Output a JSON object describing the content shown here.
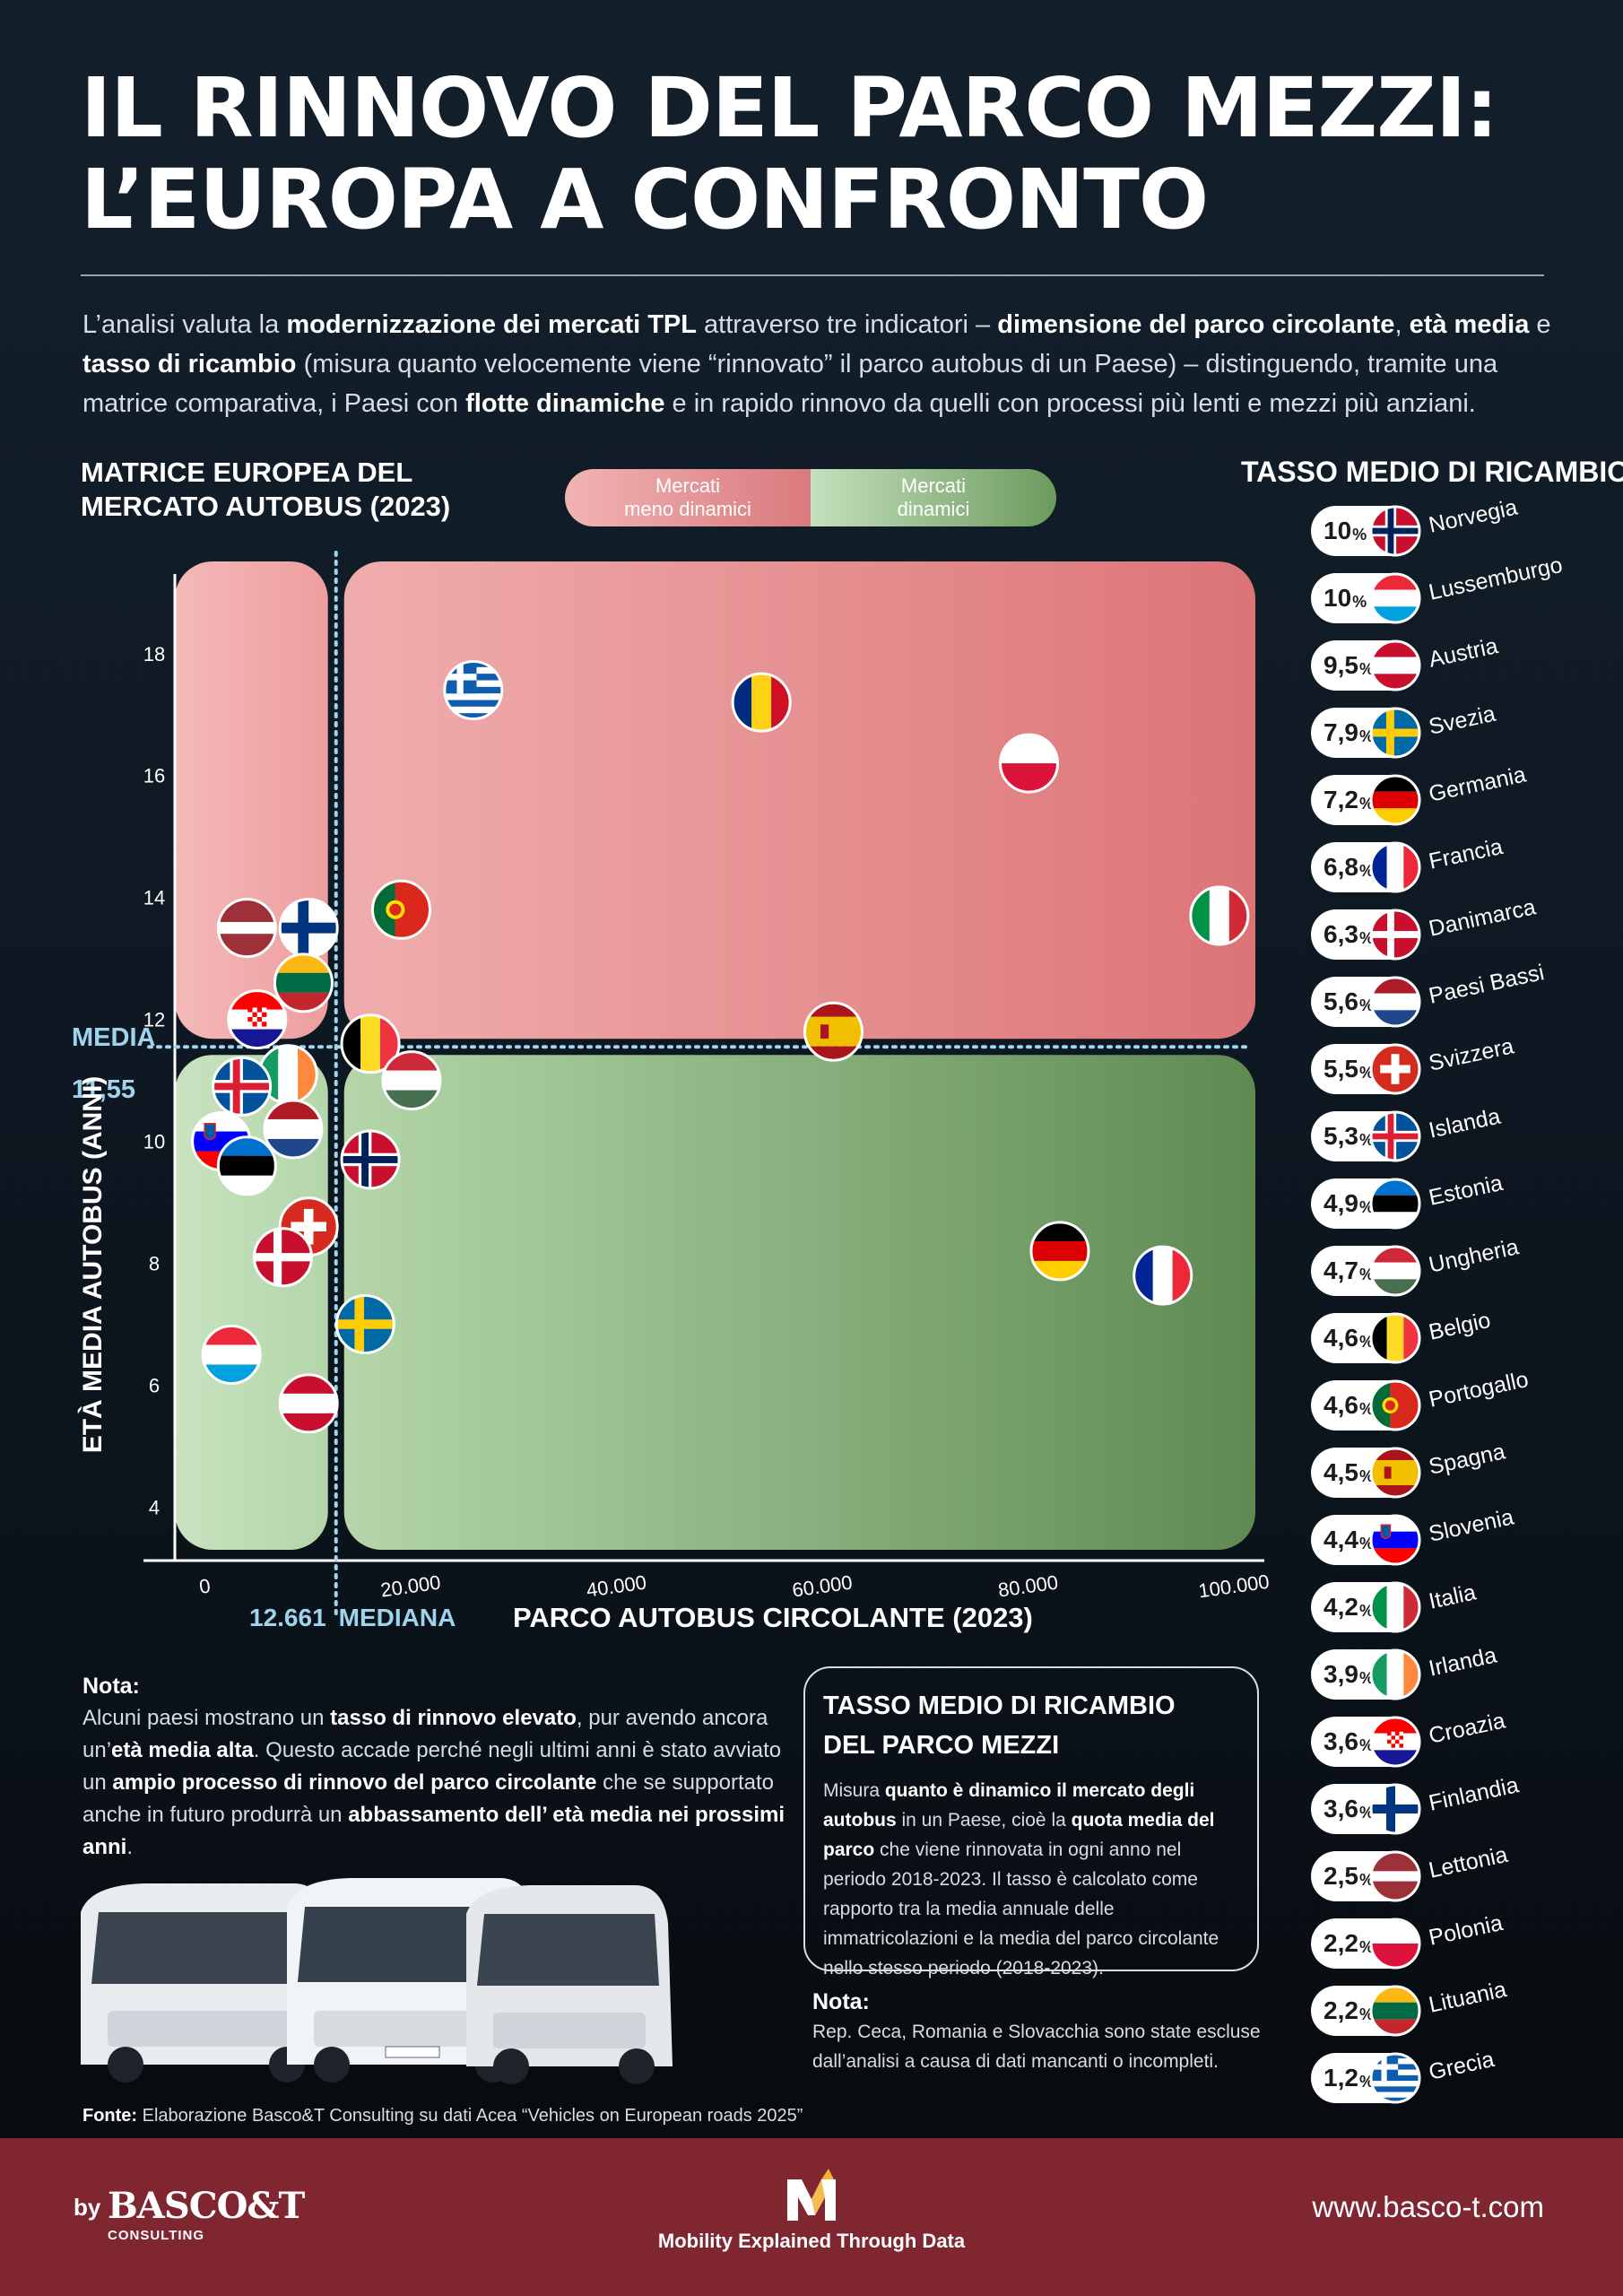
{
  "header": {
    "title_line1": "IL RINNOVO DEL PARCO MEZZI:",
    "title_line2": "L’EUROPA A CONFRONTO"
  },
  "intro": {
    "t1": "L’analisi valuta la ",
    "b1": "modernizzazione dei mercati TPL",
    "t2": " attraverso tre indicatori – ",
    "b2": "dimensione del parco circolante",
    "t3": ", ",
    "b3": "età media",
    "t4": " e ",
    "b4": "tasso di ricambio",
    "t5": " (misura quanto velocemente viene “rinnovato” il parco autobus di un Paese) – distinguendo, tramite una matrice comparativa, i Paesi con ",
    "b5": "flotte dinamiche",
    "t6": " e in rapido rinnovo da quelli con processi più lenti e mezzi più anziani."
  },
  "matrix": {
    "title_line1": "MATRICE EUROPEA DEL",
    "title_line2": "MERCATO AUTOBUS (2023)",
    "legend_less": "Mercati\nmeno dinamici",
    "legend_more": "Mercati\ndinamici",
    "media_label": "MEDIA",
    "media_value": "11,55",
    "median_value": "12.661",
    "median_label": "MEDIANA"
  },
  "chart_data": {
    "type": "scatter",
    "xlabel": "PARCO AUTOBUS CIRCOLANTE (2023)",
    "ylabel": "ETÀ MEDIA AUTOBUS (ANNI)",
    "xlim": [
      -3000,
      102000
    ],
    "ylim": [
      3.3,
      19.6
    ],
    "x_ticks": [
      0,
      20000,
      40000,
      60000,
      80000,
      100000
    ],
    "x_tick_labels": [
      "0",
      "20.000",
      "40.000",
      "60.000",
      "80.000",
      "100.000"
    ],
    "y_ticks": [
      4,
      6,
      8,
      10,
      12,
      14,
      16,
      18
    ],
    "y_tick_labels": [
      "4",
      "6",
      "8",
      "10",
      "12",
      "14",
      "16",
      "18"
    ],
    "mean_age": 11.55,
    "median_fleet": 12661,
    "quadrant_colors": {
      "older": "#e48a8c",
      "younger": "#8dba82"
    },
    "points": [
      {
        "country": "Grecia",
        "flag": "greece",
        "x": 26000,
        "y": 17.4
      },
      {
        "country": "Romania",
        "flag": "romania",
        "x": 54000,
        "y": 17.2
      },
      {
        "country": "Polonia",
        "flag": "poland",
        "x": 80000,
        "y": 16.2
      },
      {
        "country": "Italia",
        "flag": "italy",
        "x": 98500,
        "y": 13.7
      },
      {
        "country": "Portogallo",
        "flag": "portugal",
        "x": 19000,
        "y": 13.8
      },
      {
        "country": "Lettonia",
        "flag": "latvia",
        "x": 4000,
        "y": 13.5
      },
      {
        "country": "Finlandia",
        "flag": "finland",
        "x": 10000,
        "y": 13.5
      },
      {
        "country": "Lituania",
        "flag": "lithuania",
        "x": 9500,
        "y": 12.6
      },
      {
        "country": "Croazia",
        "flag": "croatia",
        "x": 5000,
        "y": 12.0
      },
      {
        "country": "Belgio",
        "flag": "belgium",
        "x": 16000,
        "y": 11.6
      },
      {
        "country": "Spagna",
        "flag": "spain",
        "x": 61000,
        "y": 11.8
      },
      {
        "country": "Ungheria",
        "flag": "hungary",
        "x": 20000,
        "y": 11.0
      },
      {
        "country": "Irlanda",
        "flag": "ireland",
        "x": 8000,
        "y": 11.1
      },
      {
        "country": "Islanda",
        "flag": "iceland",
        "x": 3500,
        "y": 10.9
      },
      {
        "country": "Paesi Bassi",
        "flag": "netherlands",
        "x": 8500,
        "y": 10.2
      },
      {
        "country": "Slovenia",
        "flag": "slovenia",
        "x": 1500,
        "y": 10.0
      },
      {
        "country": "Estonia",
        "flag": "estonia",
        "x": 4000,
        "y": 9.6
      },
      {
        "country": "Norvegia",
        "flag": "norway",
        "x": 16000,
        "y": 9.7
      },
      {
        "country": "Svizzera",
        "flag": "switzerland",
        "x": 10000,
        "y": 8.6
      },
      {
        "country": "Danimarca",
        "flag": "denmark",
        "x": 7500,
        "y": 8.1
      },
      {
        "country": "Germania",
        "flag": "germany",
        "x": 83000,
        "y": 8.2
      },
      {
        "country": "Francia",
        "flag": "france",
        "x": 93000,
        "y": 7.8
      },
      {
        "country": "Svezia",
        "flag": "sweden",
        "x": 15500,
        "y": 7.0
      },
      {
        "country": "Lussemburgo",
        "flag": "luxembourg",
        "x": 2500,
        "y": 6.5
      },
      {
        "country": "Austria",
        "flag": "austria",
        "x": 10000,
        "y": 5.7
      }
    ]
  },
  "rates": {
    "title": "TASSO MEDIO DI RICAMBIO",
    "items": [
      {
        "value": "10",
        "country": "Norvegia",
        "flag": "norway"
      },
      {
        "value": "10",
        "country": "Lussemburgo",
        "flag": "luxembourg"
      },
      {
        "value": "9,5",
        "country": "Austria",
        "flag": "austria"
      },
      {
        "value": "7,9",
        "country": "Svezia",
        "flag": "sweden"
      },
      {
        "value": "7,2",
        "country": "Germania",
        "flag": "germany"
      },
      {
        "value": "6,8",
        "country": "Francia",
        "flag": "france"
      },
      {
        "value": "6,3",
        "country": "Danimarca",
        "flag": "denmark"
      },
      {
        "value": "5,6",
        "country": "Paesi Bassi",
        "flag": "netherlands"
      },
      {
        "value": "5,5",
        "country": "Svizzera",
        "flag": "switzerland"
      },
      {
        "value": "5,3",
        "country": "Islanda",
        "flag": "iceland"
      },
      {
        "value": "4,9",
        "country": "Estonia",
        "flag": "estonia"
      },
      {
        "value": "4,7",
        "country": "Ungheria",
        "flag": "hungary"
      },
      {
        "value": "4,6",
        "country": "Belgio",
        "flag": "belgium"
      },
      {
        "value": "4,6",
        "country": "Portogallo",
        "flag": "portugal"
      },
      {
        "value": "4,5",
        "country": "Spagna",
        "flag": "spain"
      },
      {
        "value": "4,4",
        "country": "Slovenia",
        "flag": "slovenia"
      },
      {
        "value": "4,2",
        "country": "Italia",
        "flag": "italy"
      },
      {
        "value": "3,9",
        "country": "Irlanda",
        "flag": "ireland"
      },
      {
        "value": "3,6",
        "country": "Croazia",
        "flag": "croatia"
      },
      {
        "value": "3,6",
        "country": "Finlandia",
        "flag": "finland"
      },
      {
        "value": "2,5",
        "country": "Lettonia",
        "flag": "latvia"
      },
      {
        "value": "2,2",
        "country": "Polonia",
        "flag": "poland"
      },
      {
        "value": "2,2",
        "country": "Lituania",
        "flag": "lithuania"
      },
      {
        "value": "1,2",
        "country": "Grecia",
        "flag": "greece"
      }
    ],
    "unit": "%"
  },
  "note1": {
    "head": "Nota:",
    "t1": "Alcuni paesi mostrano un ",
    "b1": "tasso di rinnovo elevato",
    "t2": ", pur avendo ancora un’",
    "b2": "età media alta",
    "t3": ". Questo accade perché negli ultimi anni è stato avviato un ",
    "b3": "ampio processo di rinnovo del parco circolante",
    "t4": " che se supportato anche in futuro produrrà un ",
    "b4": "abbassamento dell’ età media nei prossimi anni",
    "t5": "."
  },
  "definition": {
    "title_line1": "TASSO MEDIO DI RICAMBIO",
    "title_line2": "DEL PARCO MEZZI",
    "t1": "Misura ",
    "b1": "quanto è dinamico il mercato degli autobus",
    "t2": " in un Paese, cioè la ",
    "b2": "quota media del parco",
    "t3": " che viene rinnovata in ogni anno nel periodo 2018-2023. Il tasso è calcolato come rapporto tra la media annuale delle immatricolazioni e la media del parco circolante nello stesso periodo (2018-2023)."
  },
  "note2": {
    "head": "Nota:",
    "text": "Rep. Ceca, Romania e Slovacchia sono state escluse dall’analisi a causa di dati mancanti o incompleti."
  },
  "source": {
    "label": "Fonte:",
    "text": " Elaborazione Basco&T Consulting su dati Acea “Vehicles on European roads 2025”"
  },
  "footer": {
    "by": "by",
    "brand": "BASCO&T",
    "consulting": "CONSULTING",
    "tagline": "Mobility Explained Through Data",
    "url": "www.basco-t.com"
  },
  "colors": {
    "background": "#0e1822",
    "accent_blue": "#9fd4ee",
    "footer": "#7f2631",
    "red_quadrant": "#e48a8c",
    "green_quadrant": "#8dba82"
  }
}
